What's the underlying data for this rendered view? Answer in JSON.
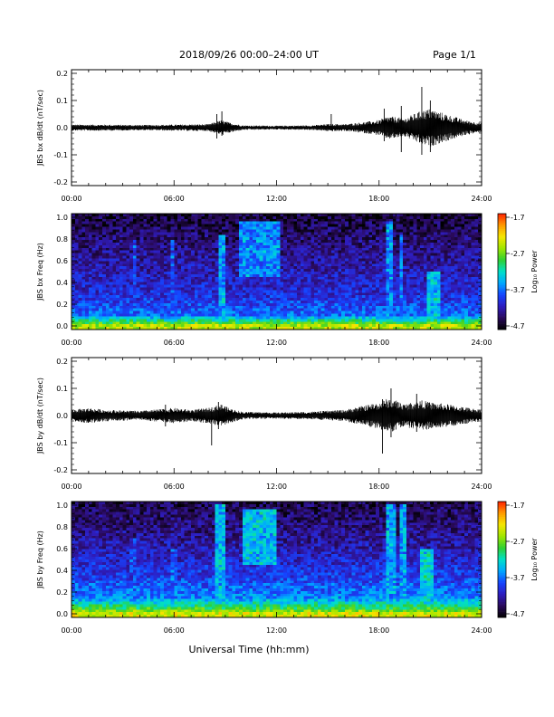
{
  "header": {
    "title": "2018/09/26  00:00–24:00 UT",
    "page": "Page 1/1"
  },
  "xlabel": "Universal Time (hh:mm)",
  "colors": {
    "background": "#ffffff",
    "line": "#000000"
  },
  "colorbar": {
    "label": "Log₁₀ Power",
    "ticks": [
      "-1.7",
      "-2.7",
      "-3.7",
      "-4.7"
    ],
    "range": [
      -4.7,
      -1.7
    ],
    "colormap": [
      "#000000",
      "#2a0a5c",
      "#2e1dbf",
      "#1545ff",
      "#00a8ff",
      "#00e0c8",
      "#30d030",
      "#a0e600",
      "#f5e600",
      "#ff9a00",
      "#ff2000"
    ]
  },
  "chart_data": [
    {
      "type": "line",
      "ylabel": "JBS bx dB/dt (nT/sec)",
      "ylim": [
        -0.2,
        0.2
      ],
      "yticks": [
        "0.2",
        "0.1",
        "0.0",
        "-0.1",
        "-0.2"
      ],
      "x_ticks": [
        "00:00",
        "06:00",
        "12:00",
        "18:00",
        "24:00"
      ],
      "xlim_hours": [
        0,
        24
      ],
      "envelope": {
        "x_hours": [
          0,
          2,
          4,
          6,
          8,
          8.8,
          9.2,
          10,
          12,
          14,
          15.2,
          16,
          17,
          18,
          18.5,
          19,
          19.5,
          20,
          20.5,
          21,
          21.5,
          22,
          23,
          24
        ],
        "amplitude": [
          0.008,
          0.008,
          0.007,
          0.008,
          0.009,
          0.02,
          0.014,
          0.006,
          0.005,
          0.006,
          0.01,
          0.009,
          0.014,
          0.02,
          0.03,
          0.028,
          0.024,
          0.035,
          0.045,
          0.05,
          0.042,
          0.035,
          0.02,
          0.012
        ]
      },
      "spikes": [
        {
          "x_hours": 8.5,
          "min": -0.04,
          "max": 0.05
        },
        {
          "x_hours": 8.8,
          "min": -0.03,
          "max": 0.06
        },
        {
          "x_hours": 15.2,
          "min": -0.01,
          "max": 0.05
        },
        {
          "x_hours": 18.3,
          "min": -0.05,
          "max": 0.07
        },
        {
          "x_hours": 19.3,
          "min": -0.09,
          "max": 0.08
        },
        {
          "x_hours": 20.5,
          "min": -0.1,
          "max": 0.15
        },
        {
          "x_hours": 21.0,
          "min": -0.09,
          "max": 0.1
        }
      ]
    },
    {
      "type": "heatmap",
      "ylabel": "JBS bx Freq (Hz)",
      "ylim": [
        0,
        1.0
      ],
      "yticks": [
        "1.0",
        "0.8",
        "0.6",
        "0.4",
        "0.2",
        "0.0"
      ],
      "x_ticks": [
        "00:00",
        "06:00",
        "12:00",
        "18:00",
        "24:00"
      ],
      "xlim_hours": [
        0,
        24
      ],
      "zlim": [
        -4.7,
        -1.7
      ],
      "background_power": [
        {
          "f_hz": 0.0,
          "log_power": -2.5
        },
        {
          "f_hz": 0.04,
          "log_power": -3.0
        },
        {
          "f_hz": 0.1,
          "log_power": -3.7
        },
        {
          "f_hz": 0.3,
          "log_power": -4.0
        },
        {
          "f_hz": 0.6,
          "log_power": -4.2
        },
        {
          "f_hz": 1.0,
          "log_power": -4.5
        }
      ],
      "features": [
        {
          "t_hours": [
            3.6,
            3.7
          ],
          "f_hz": [
            0.0,
            0.8
          ],
          "log_power": -3.9
        },
        {
          "t_hours": [
            5.8,
            6.0
          ],
          "f_hz": [
            0.0,
            0.8
          ],
          "log_power": -3.8
        },
        {
          "t_hours": [
            8.6,
            8.9
          ],
          "f_hz": [
            0.0,
            0.85
          ],
          "log_power": -3.5
        },
        {
          "t_hours": [
            9.8,
            12.2
          ],
          "f_hz": [
            0.45,
            0.95
          ],
          "log_power": -3.6
        },
        {
          "t_hours": [
            18.5,
            18.8
          ],
          "f_hz": [
            0.0,
            0.95
          ],
          "log_power": -3.6
        },
        {
          "t_hours": [
            19.2,
            19.4
          ],
          "f_hz": [
            0.0,
            0.85
          ],
          "log_power": -3.6
        },
        {
          "t_hours": [
            20.8,
            21.6
          ],
          "f_hz": [
            0.0,
            0.5
          ],
          "log_power": -3.4
        }
      ]
    },
    {
      "type": "line",
      "ylabel": "JBS by dB/dt (nT/sec)",
      "ylim": [
        -0.2,
        0.2
      ],
      "yticks": [
        "0.2",
        "0.1",
        "0.0",
        "-0.1",
        "-0.2"
      ],
      "x_ticks": [
        "00:00",
        "06:00",
        "12:00",
        "18:00",
        "24:00"
      ],
      "xlim_hours": [
        0,
        24
      ],
      "envelope": {
        "x_hours": [
          0,
          1,
          2,
          4,
          5.5,
          6,
          7,
          8,
          8.8,
          9.2,
          10,
          12,
          14,
          16,
          17,
          18,
          18.5,
          19,
          19.5,
          20,
          20.5,
          21,
          22,
          23,
          24
        ],
        "amplitude": [
          0.015,
          0.02,
          0.015,
          0.012,
          0.018,
          0.02,
          0.015,
          0.02,
          0.03,
          0.02,
          0.01,
          0.008,
          0.01,
          0.015,
          0.025,
          0.035,
          0.045,
          0.04,
          0.03,
          0.035,
          0.04,
          0.035,
          0.03,
          0.022,
          0.015
        ]
      },
      "spikes": [
        {
          "x_hours": 5.5,
          "min": -0.04,
          "max": 0.04
        },
        {
          "x_hours": 8.2,
          "min": -0.11,
          "max": 0.02
        },
        {
          "x_hours": 8.6,
          "min": -0.05,
          "max": 0.05
        },
        {
          "x_hours": 18.2,
          "min": -0.14,
          "max": 0.06
        },
        {
          "x_hours": 18.7,
          "min": -0.08,
          "max": 0.1
        },
        {
          "x_hours": 20.2,
          "min": -0.06,
          "max": 0.08
        }
      ]
    },
    {
      "type": "heatmap",
      "ylabel": "JBS by Freq (Hz)",
      "ylim": [
        0,
        1.0
      ],
      "yticks": [
        "1.0",
        "0.8",
        "0.6",
        "0.4",
        "0.2",
        "0.0"
      ],
      "x_ticks": [
        "00:00",
        "06:00",
        "12:00",
        "18:00",
        "24:00"
      ],
      "xlim_hours": [
        0,
        24
      ],
      "zlim": [
        -4.7,
        -1.7
      ],
      "background_power": [
        {
          "f_hz": 0.0,
          "log_power": -2.4
        },
        {
          "f_hz": 0.05,
          "log_power": -2.9
        },
        {
          "f_hz": 0.15,
          "log_power": -3.6
        },
        {
          "f_hz": 0.35,
          "log_power": -3.9
        },
        {
          "f_hz": 0.6,
          "log_power": -4.15
        },
        {
          "f_hz": 1.0,
          "log_power": -4.45
        }
      ],
      "features": [
        {
          "t_hours": [
            3.5,
            3.8
          ],
          "f_hz": [
            0.0,
            0.7
          ],
          "log_power": -3.9
        },
        {
          "t_hours": [
            5.8,
            6.1
          ],
          "f_hz": [
            0.0,
            0.6
          ],
          "log_power": -3.8
        },
        {
          "t_hours": [
            8.5,
            8.9
          ],
          "f_hz": [
            0.0,
            1.0
          ],
          "log_power": -3.4
        },
        {
          "t_hours": [
            9.9,
            12.0
          ],
          "f_hz": [
            0.45,
            0.95
          ],
          "log_power": -3.4
        },
        {
          "t_hours": [
            18.4,
            18.9
          ],
          "f_hz": [
            0.0,
            1.0
          ],
          "log_power": -3.5
        },
        {
          "t_hours": [
            19.1,
            19.5
          ],
          "f_hz": [
            0.0,
            1.0
          ],
          "log_power": -3.5
        },
        {
          "t_hours": [
            20.5,
            21.2
          ],
          "f_hz": [
            0.0,
            0.6
          ],
          "log_power": -3.3
        }
      ]
    }
  ]
}
